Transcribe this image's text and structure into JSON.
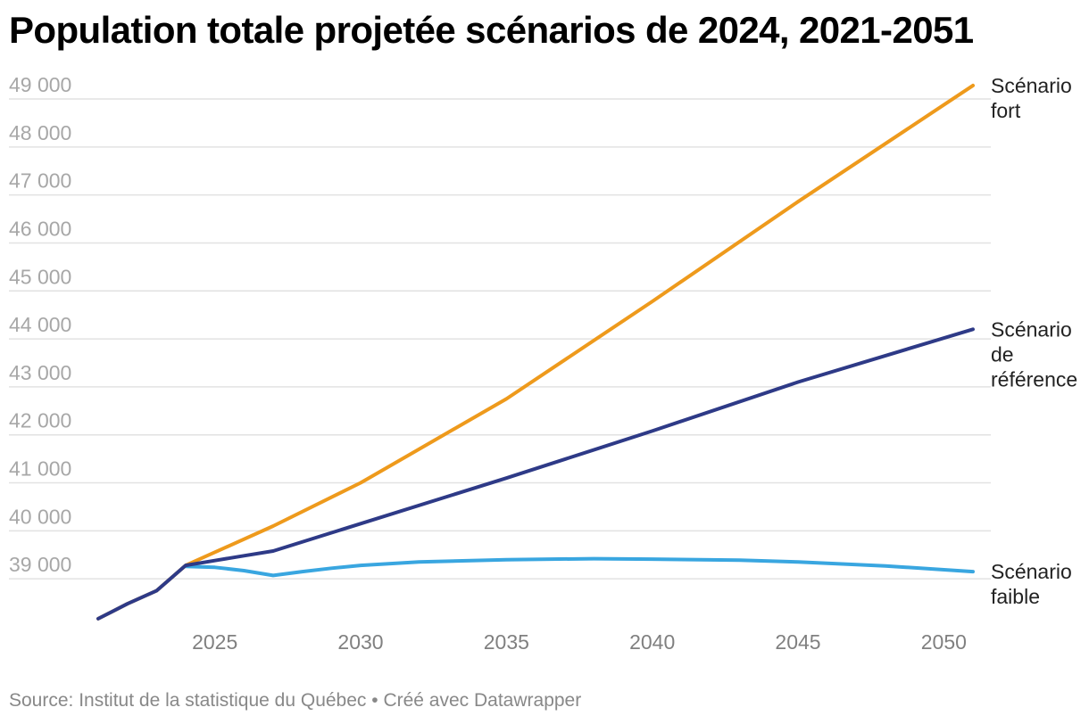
{
  "title": "Population totale projetée scénarios de 2024, 2021-2051",
  "footer": {
    "source": "Source: Institut de la statistique du Québec",
    "separator": "•",
    "credit": "Créé avec Datawrapper"
  },
  "colors": {
    "fort": "#ee9a1c",
    "reference": "#2e3a87",
    "faible": "#39a6e0",
    "grid": "#e2e2e2"
  },
  "chart_data": {
    "type": "line",
    "title": "Population totale projetée scénarios de 2024, 2021-2051",
    "xlim": [
      2021,
      2051
    ],
    "ylim": [
      38000,
      49000
    ],
    "x_ticks": [
      2025,
      2030,
      2035,
      2040,
      2045,
      2050
    ],
    "x_tick_labels": [
      "2025",
      "2030",
      "2035",
      "2040",
      "2045",
      "2050"
    ],
    "y_ticks": [
      39000,
      40000,
      41000,
      42000,
      43000,
      44000,
      45000,
      46000,
      47000,
      48000,
      49000
    ],
    "y_tick_labels": [
      "39 000",
      "40 000",
      "41 000",
      "42 000",
      "43 000",
      "44 000",
      "45 000",
      "46 000",
      "47 000",
      "48 000",
      "49 000"
    ],
    "grid": true,
    "legend": "direct labels at right end of lines",
    "series": [
      {
        "name": "Scénario fort",
        "label_lines": [
          "Scénario",
          "fort"
        ],
        "color": "#ee9a1c",
        "points": [
          [
            2021,
            38170
          ],
          [
            2022,
            38480
          ],
          [
            2023,
            38750
          ],
          [
            2024,
            39280
          ],
          [
            2027,
            40100
          ],
          [
            2030,
            41000
          ],
          [
            2035,
            42750
          ],
          [
            2040,
            44780
          ],
          [
            2045,
            46860
          ],
          [
            2051,
            49280
          ]
        ]
      },
      {
        "name": "Scénario de référence",
        "label_lines": [
          "Scénario",
          "de",
          "référence"
        ],
        "color": "#2e3a87",
        "points": [
          [
            2021,
            38170
          ],
          [
            2022,
            38480
          ],
          [
            2023,
            38750
          ],
          [
            2024,
            39280
          ],
          [
            2025,
            39380
          ],
          [
            2026,
            39480
          ],
          [
            2027,
            39580
          ],
          [
            2030,
            40150
          ],
          [
            2035,
            41100
          ],
          [
            2040,
            42080
          ],
          [
            2045,
            43100
          ],
          [
            2051,
            44200
          ]
        ]
      },
      {
        "name": "Scénario faible",
        "label_lines": [
          "Scénario",
          "faible"
        ],
        "color": "#39a6e0",
        "points": [
          [
            2024,
            39260
          ],
          [
            2025,
            39240
          ],
          [
            2026,
            39170
          ],
          [
            2027,
            39070
          ],
          [
            2028,
            39150
          ],
          [
            2029,
            39220
          ],
          [
            2030,
            39280
          ],
          [
            2032,
            39350
          ],
          [
            2035,
            39400
          ],
          [
            2038,
            39420
          ],
          [
            2040,
            39410
          ],
          [
            2043,
            39390
          ],
          [
            2045,
            39350
          ],
          [
            2048,
            39270
          ],
          [
            2051,
            39150
          ]
        ]
      }
    ]
  }
}
